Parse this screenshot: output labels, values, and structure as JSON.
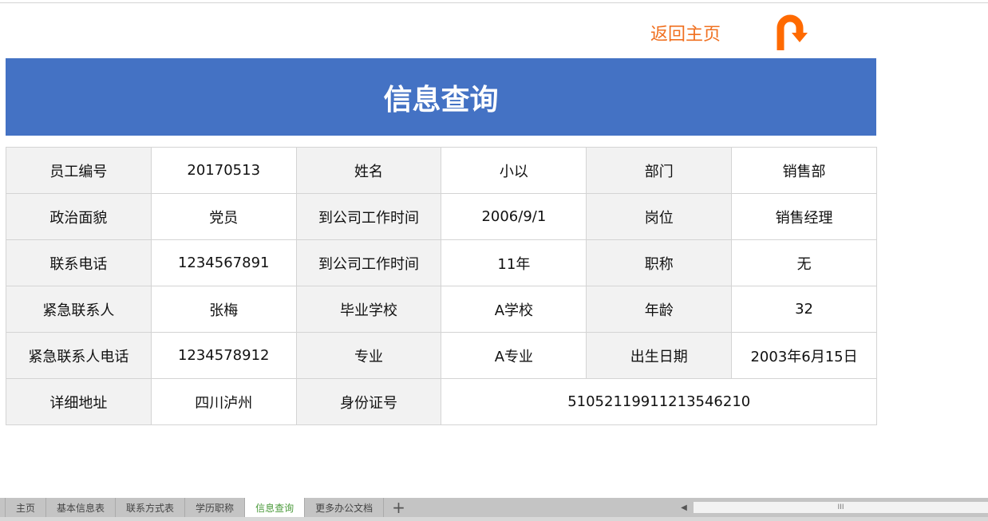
{
  "header": {
    "return_label": "返回主页",
    "return_icon": "u-turn-arrow-icon",
    "accent": "#f07020",
    "title": "信息查询",
    "banner_color": "#4472c4"
  },
  "rows": [
    [
      "员工编号",
      "20170513",
      "姓名",
      "小以",
      "部门",
      "销售部"
    ],
    [
      "政治面貌",
      "党员",
      "到公司工作时间",
      "2006/9/1",
      "岗位",
      "销售经理"
    ],
    [
      "联系电话",
      "1234567891",
      "到公司工作时间",
      "11年",
      "职称",
      "无"
    ],
    [
      "紧急联系人",
      "张梅",
      "毕业学校",
      "A学校",
      "年龄",
      "32"
    ],
    [
      "紧急联系人电话",
      "1234578912",
      "专业",
      "A专业",
      "出生日期",
      "2003年6月15日"
    ]
  ],
  "last_row": [
    "详细地址",
    "四川泸州",
    "身份证号",
    "5105211991121354621​0"
  ],
  "tabs": [
    "主页",
    "基本信息表",
    "联系方式表",
    "学历职称",
    "信息查询",
    "更多办公文档"
  ],
  "active_tab": "信息查询",
  "add_tab": "+",
  "scroll": {
    "left": "◀",
    "grip": "III"
  }
}
